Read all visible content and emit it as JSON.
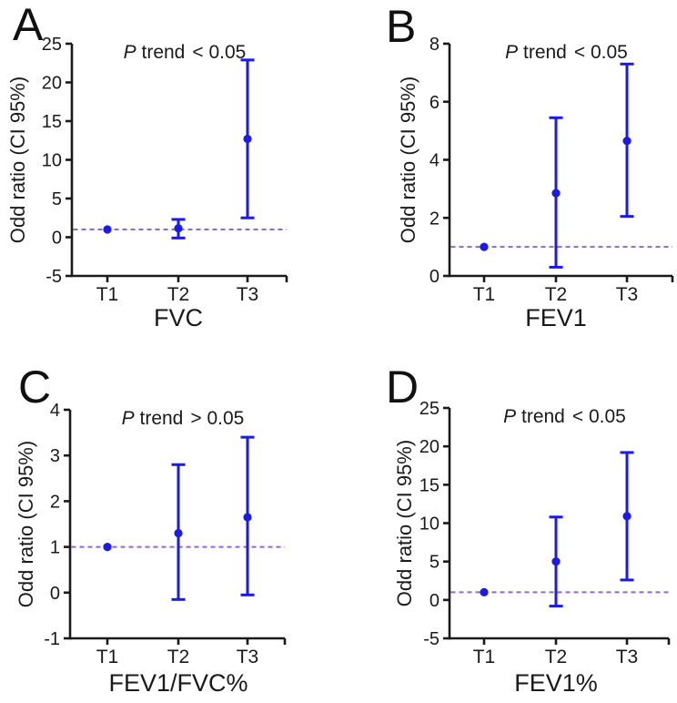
{
  "figure": {
    "y_axis_title": "Odd ratio (CI 95%)"
  },
  "colors": {
    "marker": "#1a1aee",
    "error_bar": "#1a1aee",
    "reference_line": "#8f68cc",
    "axis": "#1a1a1a",
    "text": "#1a1a1a"
  },
  "chart_data": [
    {
      "type": "scatter",
      "letter": "A",
      "p_label": {
        "italic": "P",
        "rest": " trend",
        "cmp": "< 0.05"
      },
      "title": "P trend < 0.05",
      "xlabel": "FVC",
      "ylabel": "Odd ratio (CI 95%)",
      "categories": [
        "T1",
        "T2",
        "T3"
      ],
      "ylim": [
        -5,
        25
      ],
      "yticks": [
        -5,
        0,
        5,
        10,
        15,
        20,
        25
      ],
      "reference_line_y": 1,
      "series": [
        {
          "name": "odds-ratio",
          "values": [
            1.0,
            1.15,
            12.7
          ],
          "ci_low": [
            null,
            -0.1,
            2.5
          ],
          "ci_high": [
            null,
            2.3,
            22.9
          ]
        }
      ],
      "legend": "none",
      "grid": "off"
    },
    {
      "type": "scatter",
      "letter": "B",
      "p_label": {
        "italic": "P",
        "rest": " trend",
        "cmp": "< 0.05"
      },
      "title": "P trend < 0.05",
      "xlabel": "FEV1",
      "ylabel": "Odd ratio (CI 95%)",
      "categories": [
        "T1",
        "T2",
        "T3"
      ],
      "ylim": [
        0,
        8
      ],
      "yticks": [
        0,
        2,
        4,
        6,
        8
      ],
      "reference_line_y": 1,
      "series": [
        {
          "name": "odds-ratio",
          "values": [
            1.0,
            2.85,
            4.65
          ],
          "ci_low": [
            null,
            0.3,
            2.05
          ],
          "ci_high": [
            null,
            5.45,
            7.3
          ]
        }
      ],
      "legend": "none",
      "grid": "off"
    },
    {
      "type": "scatter",
      "letter": "C",
      "p_label": {
        "italic": "P",
        "rest": " trend",
        "cmp": "> 0.05"
      },
      "title": "P trend > 0.05",
      "xlabel": "FEV1/FVC%",
      "ylabel": "Odd ratio (CI 95%)",
      "categories": [
        "T1",
        "T2",
        "T3"
      ],
      "ylim": [
        -1,
        4
      ],
      "yticks": [
        -1,
        0,
        1,
        2,
        3,
        4
      ],
      "reference_line_y": 1,
      "series": [
        {
          "name": "odds-ratio",
          "values": [
            1.0,
            1.3,
            1.65
          ],
          "ci_low": [
            null,
            -0.15,
            -0.05
          ],
          "ci_high": [
            null,
            2.8,
            3.4
          ]
        }
      ],
      "legend": "none",
      "grid": "off"
    },
    {
      "type": "scatter",
      "letter": "D",
      "p_label": {
        "italic": "P",
        "rest": " trend",
        "cmp": "< 0.05"
      },
      "title": "P trend < 0.05",
      "xlabel": "FEV1%",
      "ylabel": "Odd ratio (CI 95%)",
      "categories": [
        "T1",
        "T2",
        "T3"
      ],
      "ylim": [
        -5,
        25
      ],
      "yticks": [
        -5,
        0,
        5,
        10,
        15,
        20,
        25
      ],
      "reference_line_y": 1,
      "series": [
        {
          "name": "odds-ratio",
          "values": [
            1.0,
            5.0,
            10.9
          ],
          "ci_low": [
            null,
            -0.8,
            2.6
          ],
          "ci_high": [
            null,
            10.8,
            19.2
          ]
        }
      ],
      "legend": "none",
      "grid": "off"
    }
  ]
}
